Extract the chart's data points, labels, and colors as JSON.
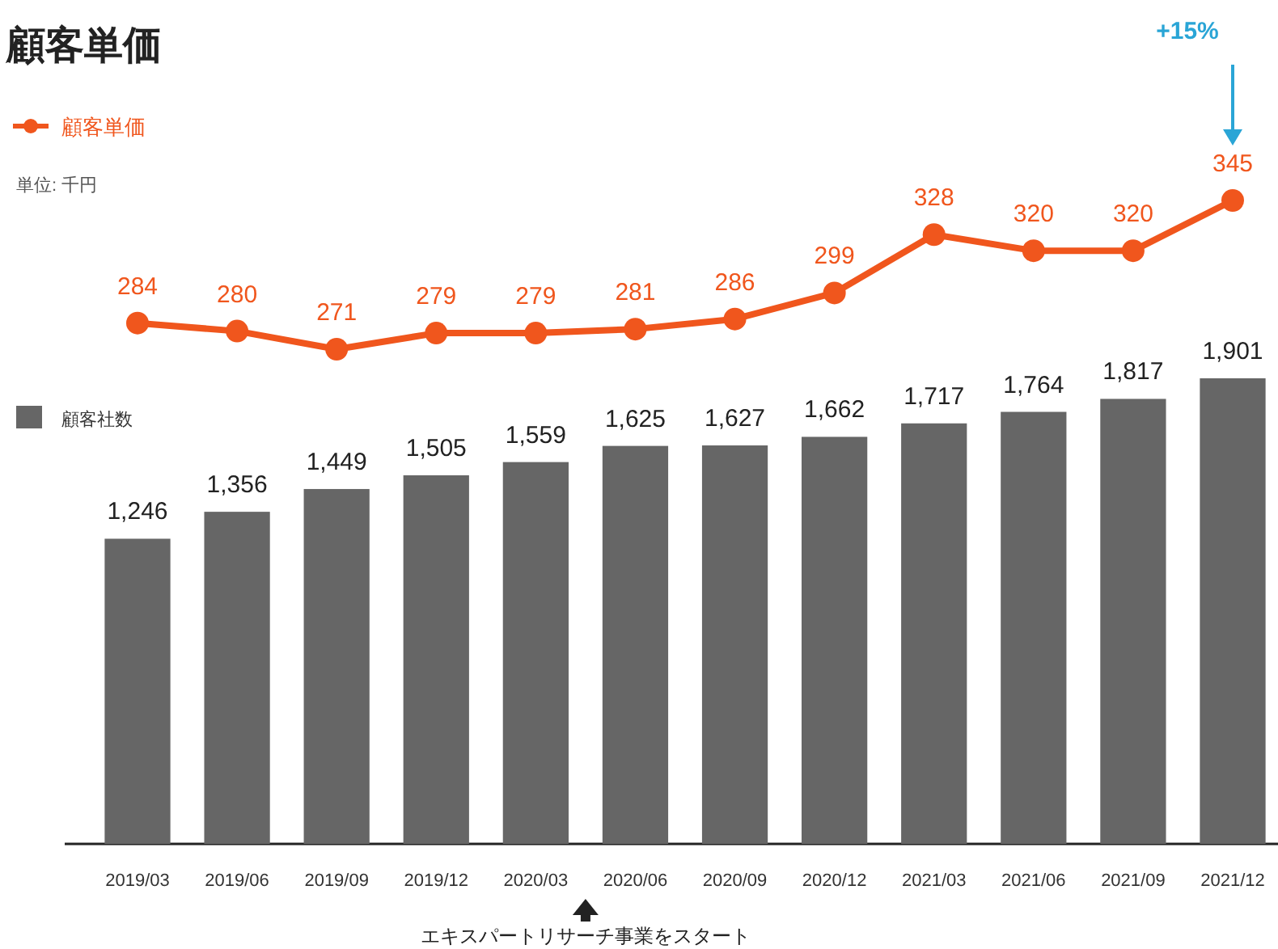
{
  "chart_data": [
    {
      "type": "line",
      "title": "顧客単価",
      "categories": [
        null,
        null,
        null,
        null,
        null,
        null,
        null,
        null,
        null,
        null,
        null,
        null
      ],
      "series": [
        {
          "name": "顧客単価",
          "color": "#f0561d",
          "marker": "circle",
          "values": [
            284,
            280,
            271,
            279,
            279,
            281,
            286,
            299,
            328,
            320,
            320,
            345
          ]
        }
      ],
      "data_labels": true,
      "legend": "top left",
      "annotations": [
        "単位: 千円",
        "+15%"
      ]
    },
    {
      "type": "bar",
      "categories": [
        "2019/03",
        "2019/06",
        "2019/09",
        "2019/12",
        "2020/03",
        "2020/06",
        "2020/09",
        "2020/12",
        "2021/03",
        "2021/06",
        "2021/09",
        "2021/12"
      ],
      "series": [
        {
          "name": "顧客社数",
          "color": "#666666",
          "values": [
            1246,
            1356,
            1449,
            1505,
            1559,
            1625,
            1627,
            1662,
            1717,
            1764,
            1817,
            1901
          ],
          "value_labels": [
            "1,246",
            "1,356",
            "1,449",
            "1,505",
            "1,559",
            "1,625",
            "1,627",
            "1,662",
            "1,717",
            "1,764",
            "1,817",
            "1,901"
          ]
        }
      ],
      "legend": "top left",
      "annotations": [
        "エキスパートリサーチ事業をスタート"
      ]
    }
  ]
}
